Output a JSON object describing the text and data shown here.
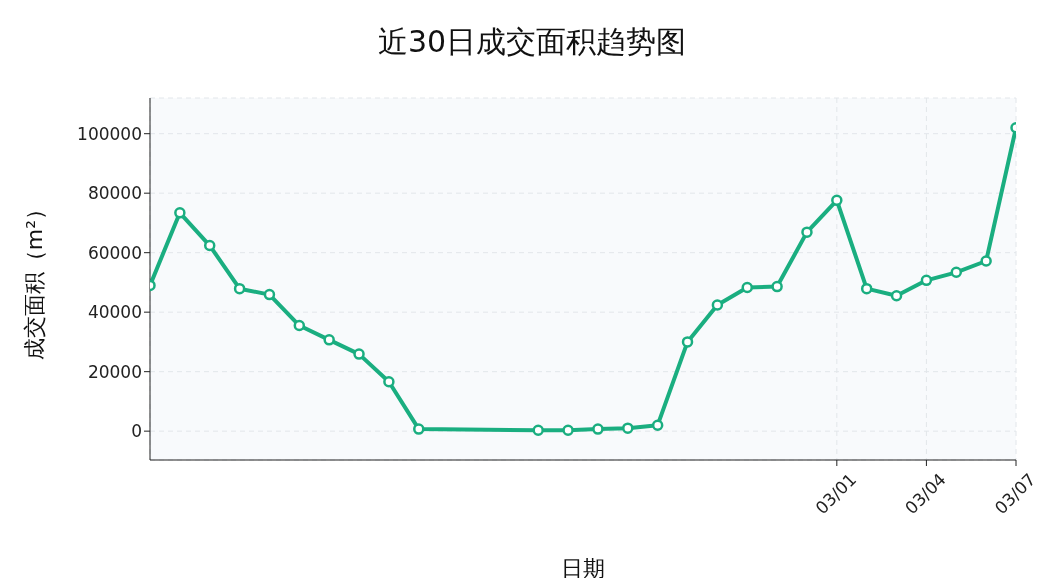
{
  "chart_data": {
    "type": "line",
    "title": "近30日成交面积趋势图",
    "xlabel": "日期",
    "ylabel": "成交面积（m²）",
    "x": [
      "--02-06",
      "--02-07",
      "--02-08",
      "--02-09",
      "--02-10",
      "--02-11",
      "--02-12",
      "--02-13",
      "--02-14",
      "--02-15",
      "--02-19",
      "--02-20",
      "--02-21",
      "--02-22",
      "--02-23",
      "--02-24",
      "--02-25",
      "--02-26",
      "--02-27",
      "--02-28",
      "--03-01",
      "--03-02",
      "--03-03",
      "--03-04",
      "--03-05",
      "--03-06",
      "--03-07"
    ],
    "series": [
      {
        "color": "#1aae80",
        "values": [
          49000,
          73400,
          62400,
          47900,
          45900,
          35500,
          30700,
          25900,
          16600,
          700,
          300,
          300,
          700,
          1000,
          2000,
          30000,
          42400,
          48300,
          48600,
          66900,
          77600,
          47900,
          45500,
          50700,
          53400,
          57200,
          102000
        ]
      }
    ],
    "xlim": [
      "--02-06",
      "--03-07"
    ],
    "xticks": [
      {
        "value": "--03-01",
        "label": "03/01"
      },
      {
        "value": "--03-04",
        "label": "03/04"
      },
      {
        "value": "--03-07",
        "label": "03/07"
      }
    ],
    "ylim": [
      -9700,
      112000
    ],
    "yticks": [
      0,
      20000,
      40000,
      60000,
      80000,
      100000
    ],
    "grid": true,
    "marker": "circle",
    "line_style": "solid"
  }
}
